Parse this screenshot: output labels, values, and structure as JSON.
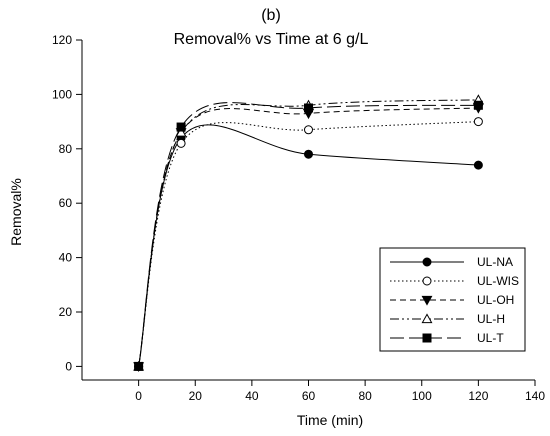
{
  "chart_data": {
    "type": "line",
    "panel_label": "(b)",
    "title": "Removal% vs Time at 6 g/L",
    "xlabel": "Time (min)",
    "ylabel": "Removal%",
    "xlim": [
      -20,
      140
    ],
    "ylim": [
      -5,
      120
    ],
    "xticks": [
      0,
      20,
      40,
      60,
      80,
      100,
      120,
      140
    ],
    "yticks": [
      0,
      20,
      40,
      60,
      80,
      100,
      120
    ],
    "grid": false,
    "legend_position": "bottom-right",
    "smooth": true,
    "series": [
      {
        "name": "UL-NA",
        "marker": "circle-filled",
        "dash": "solid",
        "x": [
          0,
          15,
          60,
          120
        ],
        "y": [
          0,
          84,
          78,
          74
        ]
      },
      {
        "name": "UL-WIS",
        "marker": "circle-open",
        "dash": "dotted",
        "x": [
          0,
          15,
          60,
          120
        ],
        "y": [
          0,
          82,
          87,
          90
        ]
      },
      {
        "name": "UL-OH",
        "marker": "triangle-down-filled",
        "dash": "dashed",
        "x": [
          0,
          15,
          60,
          120
        ],
        "y": [
          0,
          86,
          93,
          95
        ]
      },
      {
        "name": "UL-H",
        "marker": "triangle-up-open",
        "dash": "dash-dot-dot",
        "x": [
          0,
          15,
          60,
          120
        ],
        "y": [
          0,
          86,
          96,
          98
        ]
      },
      {
        "name": "UL-T",
        "marker": "square-filled",
        "dash": "long-dash",
        "x": [
          0,
          15,
          60,
          120
        ],
        "y": [
          0,
          88,
          95,
          96
        ]
      }
    ]
  }
}
